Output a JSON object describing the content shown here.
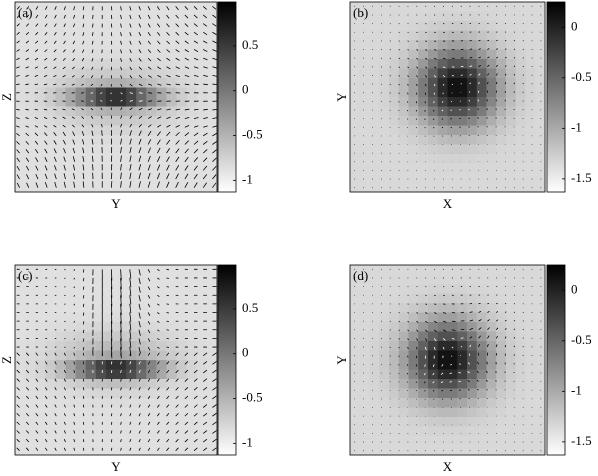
{
  "chart_data": [
    {
      "type": "heatmap",
      "panel_label": "(a)",
      "xlabel": "Y",
      "ylabel": "Z",
      "clim": [
        -1.13,
        0.99
      ],
      "cticks": [
        0.5,
        0,
        -0.5,
        -1
      ]
    },
    {
      "type": "heatmap",
      "panel_label": "(b)",
      "xlabel": "X",
      "ylabel": "Y",
      "clim": [
        -1.63,
        0.25
      ],
      "cticks": [
        0,
        -0.5,
        -1,
        -1.5
      ]
    },
    {
      "type": "heatmap",
      "panel_label": "(c)",
      "xlabel": "Y",
      "ylabel": "Z",
      "clim": [
        -1.13,
        0.99
      ],
      "cticks": [
        0.5,
        0,
        -0.5,
        -1
      ]
    },
    {
      "type": "heatmap",
      "panel_label": "(d)",
      "xlabel": "X",
      "ylabel": "Y",
      "clim": [
        -1.63,
        0.25
      ],
      "cticks": [
        0,
        -0.5,
        -1,
        -1.5
      ]
    }
  ]
}
